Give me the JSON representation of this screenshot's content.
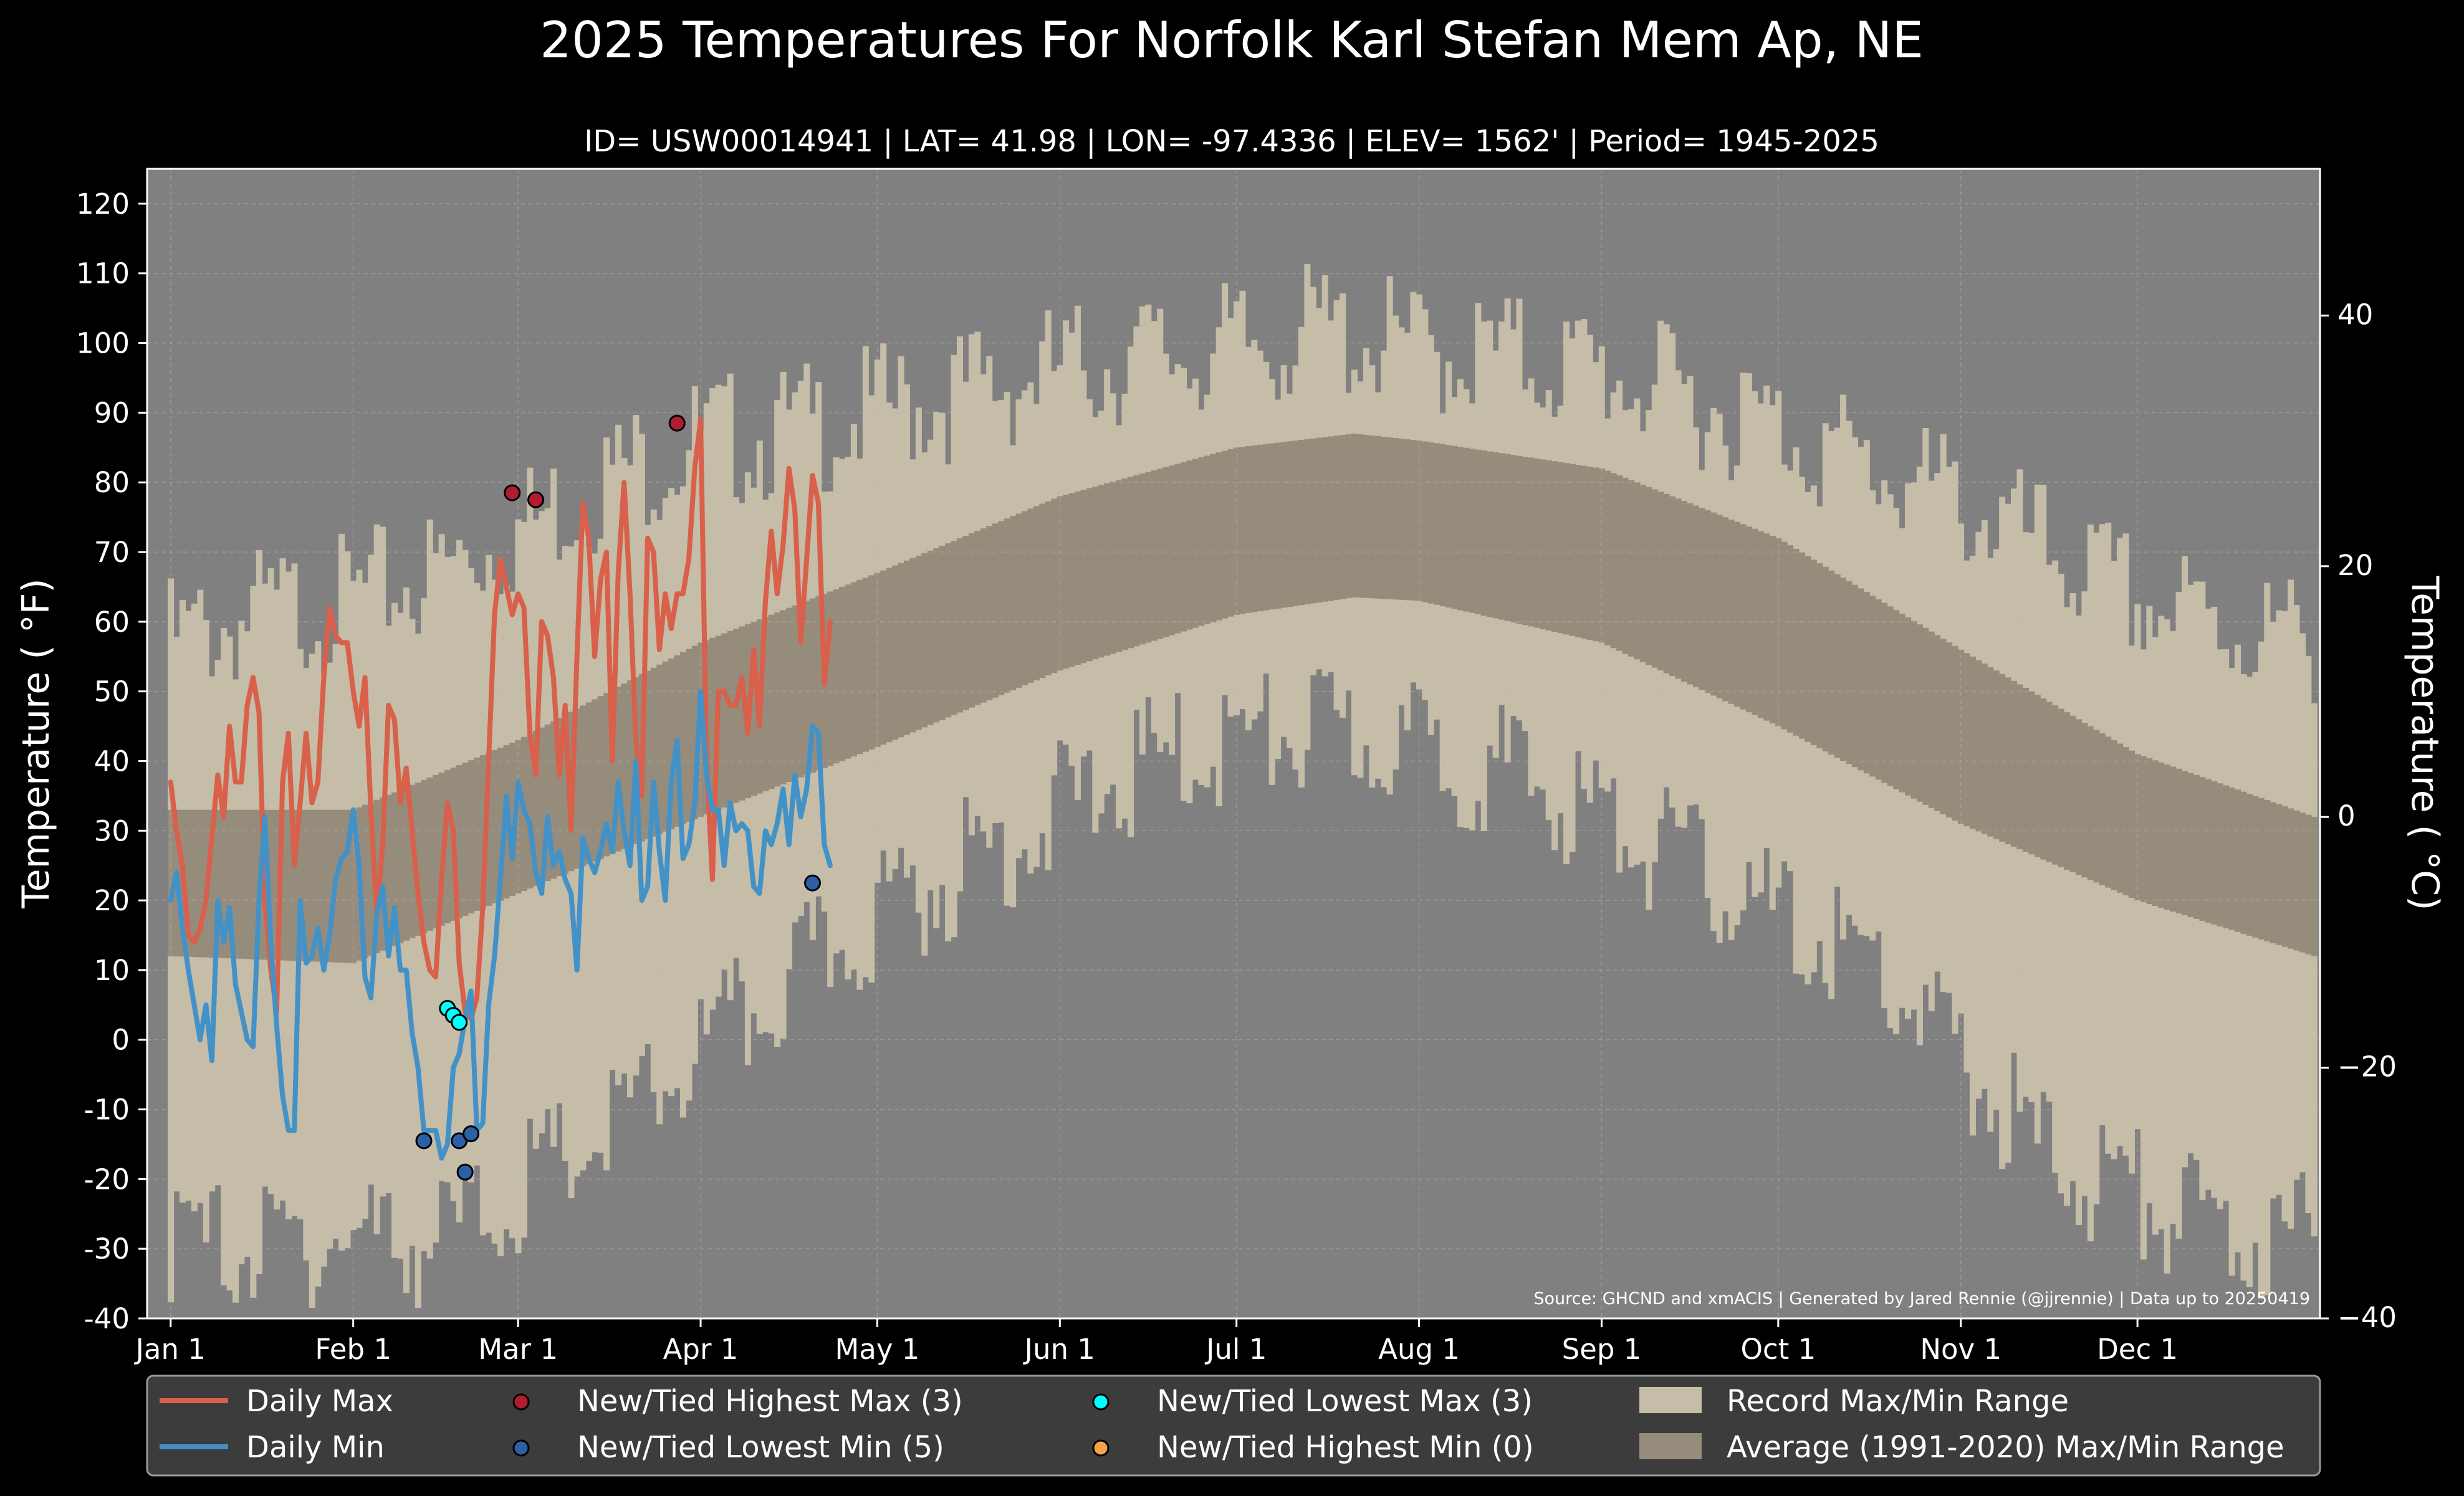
{
  "colors": {
    "background": "#000000",
    "plot_background": "#808080",
    "record_range": "#c5bda7",
    "normal_range": "#968c7c",
    "daily_max": "#d9604a",
    "daily_min": "#4392c7",
    "new_highest_max": "#b01d2e",
    "new_lowest_min": "#2b5fa6",
    "new_lowest_max": "#00ffff",
    "new_highest_min": "#f5a34a",
    "legend_bg": "#3c3c3c",
    "grid": "#b8b8b8"
  },
  "chart_data": {
    "type": "line",
    "title": "2025 Temperatures For Norfolk Karl Stefan Mem Ap, NE",
    "subtitle": "ID= USW00014941 | LAT= 41.98 | LON= -97.4336 | ELEV= 1562' | Period= 1945-2025",
    "ylabel": "Temperature ( °F)",
    "ylabel_right": "Temperature ( °C)",
    "source": "Source: GHCND and xmACIS | Generated by Jared Rennie (@jjrennie) | Data up to 20250419",
    "ylim": [
      -40,
      125
    ],
    "ylim_right_c": [
      -40,
      51.7
    ],
    "xlim_day": [
      -4,
      365
    ],
    "grid": true,
    "legend_position": "bottom",
    "y_ticks": [
      -40,
      -30,
      -20,
      -10,
      0,
      10,
      20,
      30,
      40,
      50,
      60,
      70,
      80,
      90,
      100,
      110,
      120
    ],
    "y_tick_labels": [
      "-40",
      "-30",
      "-20",
      "-10",
      "0",
      "10",
      "20",
      "30",
      "40",
      "50",
      "60",
      "70",
      "80",
      "90",
      "100",
      "110",
      "120"
    ],
    "y_right_ticks": [
      -40,
      -20,
      0,
      20,
      40
    ],
    "y_right_tick_labels": [
      "−40",
      "−20",
      "0",
      "20",
      "40"
    ],
    "x_ticks": [
      {
        "label": "Jan 1",
        "day": 0
      },
      {
        "label": "Feb 1",
        "day": 31
      },
      {
        "label": "Mar 1",
        "day": 59
      },
      {
        "label": "Apr 1",
        "day": 90
      },
      {
        "label": "May 1",
        "day": 120
      },
      {
        "label": "Jun 1",
        "day": 151
      },
      {
        "label": "Jul 1",
        "day": 181
      },
      {
        "label": "Aug 1",
        "day": 212
      },
      {
        "label": "Sep 1",
        "day": 243
      },
      {
        "label": "Oct 1",
        "day": 273
      },
      {
        "label": "Nov 1",
        "day": 304
      },
      {
        "label": "Dec 1",
        "day": 334
      }
    ],
    "record_max_anchors": [
      {
        "day": 0,
        "value": 62
      },
      {
        "day": 15,
        "value": 66
      },
      {
        "day": 31,
        "value": 68
      },
      {
        "day": 45,
        "value": 72
      },
      {
        "day": 59,
        "value": 78
      },
      {
        "day": 75,
        "value": 86
      },
      {
        "day": 90,
        "value": 91
      },
      {
        "day": 105,
        "value": 92
      },
      {
        "day": 120,
        "value": 95
      },
      {
        "day": 135,
        "value": 98
      },
      {
        "day": 151,
        "value": 101
      },
      {
        "day": 165,
        "value": 103
      },
      {
        "day": 181,
        "value": 104
      },
      {
        "day": 195,
        "value": 107
      },
      {
        "day": 212,
        "value": 104
      },
      {
        "day": 228,
        "value": 103
      },
      {
        "day": 243,
        "value": 101
      },
      {
        "day": 258,
        "value": 97
      },
      {
        "day": 273,
        "value": 93
      },
      {
        "day": 289,
        "value": 87
      },
      {
        "day": 304,
        "value": 82
      },
      {
        "day": 319,
        "value": 75
      },
      {
        "day": 334,
        "value": 68
      },
      {
        "day": 350,
        "value": 64
      },
      {
        "day": 364,
        "value": 62
      }
    ],
    "record_min_anchors": [
      {
        "day": 0,
        "value": -24
      },
      {
        "day": 15,
        "value": -25
      },
      {
        "day": 31,
        "value": -23
      },
      {
        "day": 45,
        "value": -24
      },
      {
        "day": 59,
        "value": -17
      },
      {
        "day": 75,
        "value": -8
      },
      {
        "day": 90,
        "value": 3
      },
      {
        "day": 105,
        "value": 13
      },
      {
        "day": 120,
        "value": 23
      },
      {
        "day": 135,
        "value": 30
      },
      {
        "day": 151,
        "value": 38
      },
      {
        "day": 165,
        "value": 44
      },
      {
        "day": 181,
        "value": 48
      },
      {
        "day": 195,
        "value": 49
      },
      {
        "day": 212,
        "value": 47
      },
      {
        "day": 228,
        "value": 43
      },
      {
        "day": 243,
        "value": 37
      },
      {
        "day": 258,
        "value": 30
      },
      {
        "day": 273,
        "value": 22
      },
      {
        "day": 289,
        "value": 16
      },
      {
        "day": 304,
        "value": 2
      },
      {
        "day": 319,
        "value": -12
      },
      {
        "day": 334,
        "value": -17
      },
      {
        "day": 350,
        "value": -23
      },
      {
        "day": 364,
        "value": -24
      }
    ],
    "normal_max_anchors": [
      {
        "day": 0,
        "value": 33
      },
      {
        "day": 31,
        "value": 33
      },
      {
        "day": 59,
        "value": 43
      },
      {
        "day": 90,
        "value": 57
      },
      {
        "day": 120,
        "value": 67
      },
      {
        "day": 151,
        "value": 78
      },
      {
        "day": 181,
        "value": 85
      },
      {
        "day": 201,
        "value": 87
      },
      {
        "day": 212,
        "value": 86
      },
      {
        "day": 243,
        "value": 82
      },
      {
        "day": 273,
        "value": 72
      },
      {
        "day": 304,
        "value": 56
      },
      {
        "day": 334,
        "value": 41
      },
      {
        "day": 364,
        "value": 32
      }
    ],
    "normal_min_anchors": [
      {
        "day": 0,
        "value": 12
      },
      {
        "day": 31,
        "value": 11
      },
      {
        "day": 59,
        "value": 21
      },
      {
        "day": 90,
        "value": 32
      },
      {
        "day": 120,
        "value": 42
      },
      {
        "day": 151,
        "value": 53
      },
      {
        "day": 181,
        "value": 61
      },
      {
        "day": 201,
        "value": 63.5
      },
      {
        "day": 212,
        "value": 63
      },
      {
        "day": 243,
        "value": 57
      },
      {
        "day": 273,
        "value": 45
      },
      {
        "day": 304,
        "value": 31
      },
      {
        "day": 334,
        "value": 20
      },
      {
        "day": 364,
        "value": 12
      }
    ],
    "series": [
      {
        "name": "Daily Max",
        "values": [
          37,
          30,
          25,
          15,
          14,
          16,
          20,
          29,
          38,
          32,
          45,
          37,
          37,
          48,
          52,
          47,
          20,
          10,
          4,
          37,
          44,
          25,
          34,
          44,
          34,
          37,
          52,
          62,
          58,
          57,
          57,
          50,
          45,
          52,
          33,
          18,
          28,
          48,
          46,
          34,
          39,
          30,
          21,
          14,
          10,
          9,
          23,
          34,
          30,
          11,
          4,
          3,
          6,
          19,
          40,
          61,
          69,
          65,
          61,
          64,
          62,
          44,
          38,
          60,
          58,
          52,
          38,
          48,
          30,
          55,
          77,
          72,
          55,
          66,
          70,
          40,
          67,
          80,
          64,
          43,
          35,
          72,
          70,
          56,
          64,
          59,
          64,
          64,
          69,
          82,
          89,
          40,
          23,
          50,
          50,
          48,
          48,
          52,
          44,
          56,
          45,
          63,
          73,
          64,
          71,
          82,
          76,
          57,
          69,
          81,
          77,
          51,
          60
        ]
      },
      {
        "name": "Daily Min",
        "values": [
          20,
          24,
          16,
          10,
          5,
          0,
          5,
          -3,
          20,
          14,
          19,
          8,
          4,
          0,
          -1,
          20,
          32,
          14,
          2,
          -8,
          -13,
          -13,
          20,
          11,
          12,
          16,
          10,
          15,
          23,
          26,
          27,
          33,
          25,
          9,
          6,
          18,
          22,
          12,
          19,
          10,
          10,
          1,
          -4,
          -13,
          -13,
          -13,
          -17,
          -15,
          -4,
          -2,
          3,
          7,
          -13,
          -12,
          5,
          12,
          23,
          35,
          26,
          37,
          33,
          31,
          24,
          21,
          32,
          25,
          27,
          23,
          21,
          10,
          29,
          26,
          24,
          27,
          31,
          27,
          37,
          30,
          25,
          40,
          20,
          22,
          37,
          27,
          20,
          37,
          43,
          26,
          28,
          34,
          50,
          38,
          33,
          33,
          25,
          34,
          30,
          31,
          30,
          22,
          21,
          30,
          28,
          31,
          36,
          28,
          38,
          32,
          36,
          45,
          44,
          28,
          25
        ]
      },
      {
        "name": "New/Tied Highest Max (3)",
        "points": [
          {
            "day": 58,
            "value": 78.5
          },
          {
            "day": 62,
            "value": 77.5
          },
          {
            "day": 86,
            "value": 88.5
          }
        ]
      },
      {
        "name": "New/Tied Lowest Min (5)",
        "points": [
          {
            "day": 43,
            "value": -14.5
          },
          {
            "day": 49,
            "value": -14.5
          },
          {
            "day": 50,
            "value": -19
          },
          {
            "day": 51,
            "value": -13.5
          },
          {
            "day": 109,
            "value": 22.5
          }
        ]
      },
      {
        "name": "New/Tied Lowest Max (3)",
        "points": [
          {
            "day": 47,
            "value": 4.5
          },
          {
            "day": 48,
            "value": 3.5
          },
          {
            "day": 49,
            "value": 2.5
          }
        ]
      },
      {
        "name": "New/Tied Highest Min (0)",
        "points": []
      },
      {
        "name": "Record Max/Min Range"
      },
      {
        "name": "Average (1991-2020) Max/Min Range"
      }
    ]
  }
}
